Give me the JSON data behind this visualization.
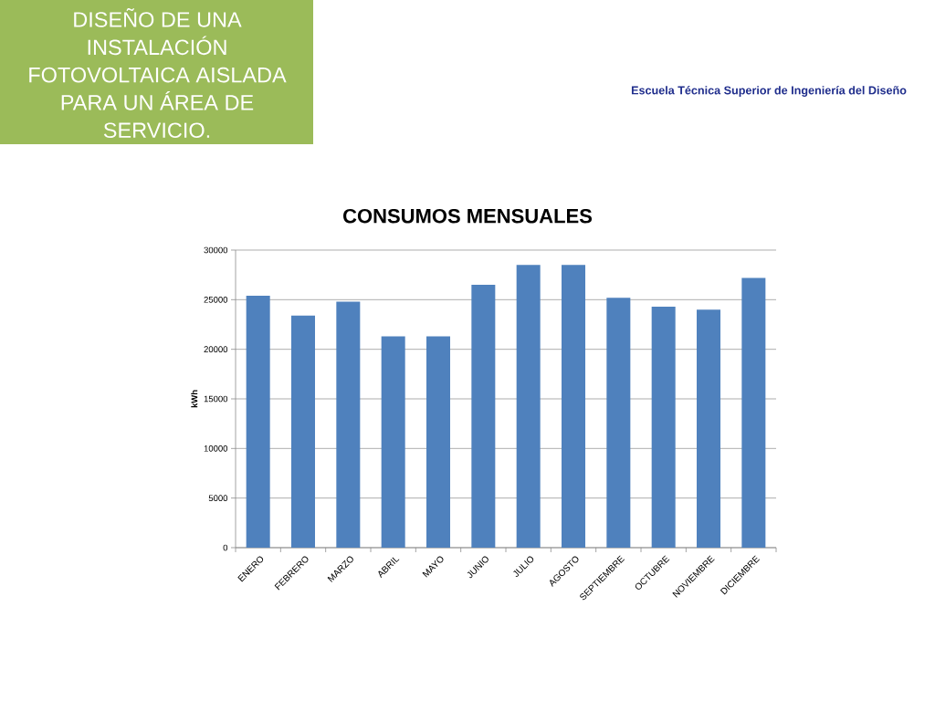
{
  "chart_data": {
    "type": "bar",
    "title": "CONSUMOS MENSUALES",
    "ylabel": "kWh",
    "categories": [
      "ENERO",
      "FEBRERO",
      "MARZO",
      "ABRIL",
      "MAYO",
      "JUNIO",
      "JULIO",
      "AGOSTO",
      "SEPTIEMBRE",
      "OCTUBRE",
      "NOVIEMBRE",
      "DICIEMBRE"
    ],
    "values": [
      25400,
      23400,
      24800,
      21300,
      21300,
      26500,
      28500,
      28500,
      25200,
      24300,
      24000,
      27200
    ],
    "color": "#4f81bd",
    "ylim": [
      0,
      30000
    ],
    "yticks": [
      0,
      5000,
      10000,
      15000,
      20000,
      25000,
      30000
    ],
    "grid": "y",
    "annotations": [
      "DISEÑO DE UNA INSTALACIÓN FOTOVOLTAICA AISLADA PARA UN ÁREA DE SERVICIO.",
      "Escuela Técnica Superior de Ingeniería del Diseño"
    ]
  }
}
